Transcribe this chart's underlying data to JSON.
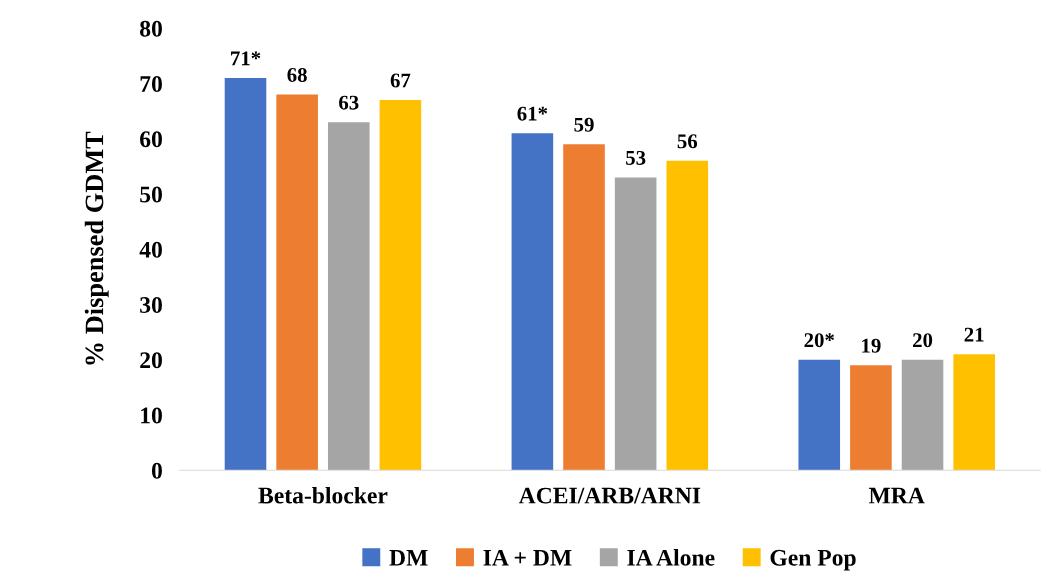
{
  "chart_data": {
    "type": "bar",
    "ylabel": "% Dispensed GDMT",
    "categories": [
      "Beta-blocker",
      "ACEI/ARB/ARNI",
      "MRA"
    ],
    "series": [
      {
        "name": "DM",
        "color": "#4472c4",
        "values": [
          71,
          61,
          20
        ],
        "value_labels": [
          "71*",
          "61*",
          "20*"
        ]
      },
      {
        "name": "IA + DM",
        "color": "#ed7d31",
        "values": [
          68,
          59,
          19
        ],
        "value_labels": [
          "68",
          "59",
          "19"
        ]
      },
      {
        "name": "IA Alone",
        "color": "#a5a5a5",
        "values": [
          63,
          53,
          20
        ],
        "value_labels": [
          "63",
          "53",
          "20"
        ]
      },
      {
        "name": "Gen Pop",
        "color": "#ffc000",
        "values": [
          67,
          56,
          21
        ],
        "value_labels": [
          "67",
          "56",
          "21"
        ]
      }
    ],
    "ylim": [
      0,
      80
    ],
    "yticks": [
      0,
      10,
      20,
      30,
      40,
      50,
      60,
      70,
      80
    ],
    "grid": false,
    "legend": "bottom"
  }
}
